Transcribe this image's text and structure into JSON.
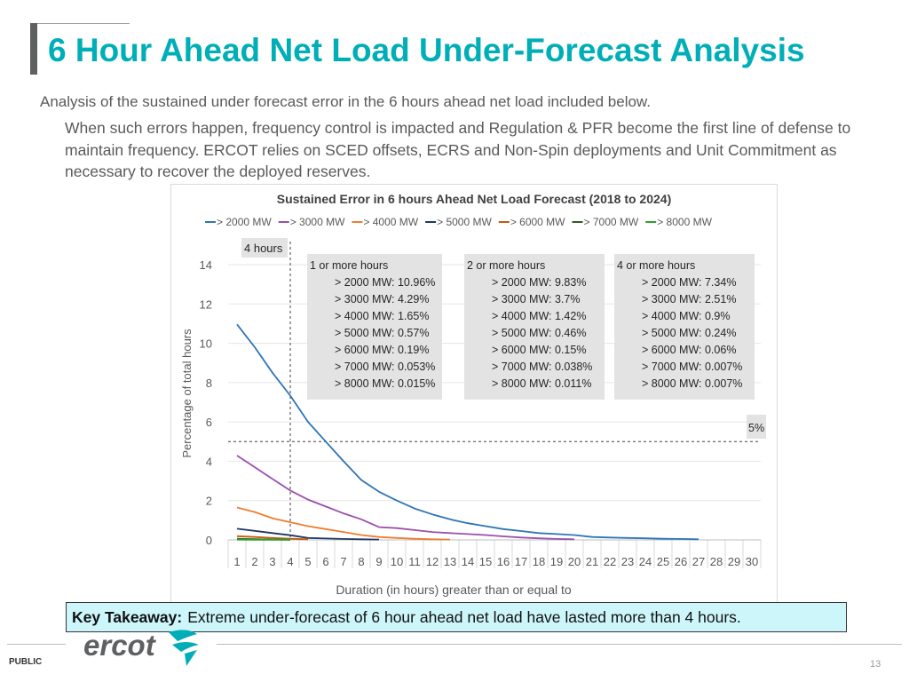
{
  "slide": {
    "title": "6 Hour Ahead Net Load Under-Forecast Analysis",
    "intro": "Analysis of the sustained under forecast error in the 6 hours ahead net load included below.",
    "body": "When such errors happen, frequency control is impacted and Regulation & PFR become the first line of defense to maintain frequency. ERCOT relies on SCED offsets, ECRS and Non-Spin deployments and Unit Commitment as necessary to recover the deployed reserves.",
    "takeaway_label": "Key Takeaway:",
    "takeaway_text": "Extreme under-forecast of 6 hour ahead net load have lasted more than 4 hours.",
    "footer_label": "PUBLIC",
    "page_number": "13",
    "logo_text": "ercot"
  },
  "chart_data": {
    "type": "line",
    "title": "Sustained Error in 6 hours Ahead Net Load Forecast (2018 to 2024)",
    "xlabel": "Duration (in hours) greater than or equal to",
    "ylabel": "Percentage of total hours",
    "xlim": [
      1,
      30
    ],
    "ylim": [
      0,
      14
    ],
    "x_ticks": [
      1,
      2,
      3,
      4,
      5,
      6,
      7,
      8,
      9,
      10,
      11,
      12,
      13,
      14,
      15,
      16,
      17,
      18,
      19,
      20,
      21,
      22,
      23,
      24,
      25,
      26,
      27,
      28,
      29,
      30
    ],
    "y_ticks": [
      0,
      2,
      4,
      6,
      8,
      10,
      12,
      14
    ],
    "series": [
      {
        "name": "> 2000 MW",
        "color": "#2e75b6",
        "x": [
          1,
          2,
          3,
          4,
          5,
          6,
          7,
          8,
          9,
          10,
          11,
          12,
          13,
          14,
          15,
          16,
          17,
          18,
          19,
          20,
          21,
          22,
          23,
          24,
          25,
          26,
          27
        ],
        "values": [
          10.96,
          9.8,
          8.5,
          7.34,
          6.0,
          5.0,
          4.0,
          3.05,
          2.45,
          2.0,
          1.6,
          1.3,
          1.05,
          0.85,
          0.7,
          0.55,
          0.45,
          0.35,
          0.3,
          0.25,
          0.15,
          0.12,
          0.1,
          0.08,
          0.06,
          0.05,
          0.03
        ]
      },
      {
        "name": "> 3000 MW",
        "color": "#9b4fae",
        "x": [
          1,
          2,
          3,
          4,
          5,
          6,
          7,
          8,
          9,
          10,
          11,
          12,
          13,
          14,
          15,
          16,
          17,
          18,
          19,
          20
        ],
        "values": [
          4.29,
          3.7,
          3.1,
          2.51,
          2.05,
          1.7,
          1.35,
          1.05,
          0.65,
          0.6,
          0.5,
          0.4,
          0.35,
          0.3,
          0.25,
          0.18,
          0.12,
          0.08,
          0.05,
          0.03
        ]
      },
      {
        "name": "> 4000 MW",
        "color": "#ed7d31",
        "x": [
          1,
          2,
          3,
          4,
          5,
          6,
          7,
          8,
          9,
          10,
          11,
          12,
          13
        ],
        "values": [
          1.65,
          1.42,
          1.1,
          0.9,
          0.7,
          0.55,
          0.4,
          0.25,
          0.15,
          0.1,
          0.06,
          0.03,
          0.02
        ]
      },
      {
        "name": "> 5000 MW",
        "color": "#1f3864",
        "x": [
          1,
          2,
          3,
          4,
          5,
          6,
          7,
          8,
          9
        ],
        "values": [
          0.57,
          0.46,
          0.35,
          0.24,
          0.1,
          0.07,
          0.05,
          0.03,
          0.02
        ]
      },
      {
        "name": "> 6000 MW",
        "color": "#c55a11",
        "x": [
          1,
          2,
          3,
          4,
          5
        ],
        "values": [
          0.19,
          0.15,
          0.1,
          0.06,
          0.03
        ]
      },
      {
        "name": "> 7000 MW",
        "color": "#375623",
        "x": [
          1,
          2,
          3,
          4
        ],
        "values": [
          0.053,
          0.038,
          0.02,
          0.007
        ]
      },
      {
        "name": "> 8000 MW",
        "color": "#2ca02c",
        "x": [
          1,
          2,
          3,
          4
        ],
        "values": [
          0.015,
          0.011,
          0.009,
          0.007
        ]
      }
    ],
    "annotations": {
      "vline": {
        "x": 4,
        "label": "4 hours"
      },
      "hline": {
        "y": 5,
        "label": "5%"
      },
      "boxes": [
        {
          "heading": "1 or more hours",
          "lines": [
            "> 2000 MW: 10.96%",
            "> 3000 MW: 4.29%",
            "> 4000 MW: 1.65%",
            "> 5000 MW: 0.57%",
            "> 6000 MW: 0.19%",
            "> 7000 MW: 0.053%",
            "> 8000 MW: 0.015%"
          ]
        },
        {
          "heading": "2 or more hours",
          "lines": [
            "> 2000 MW: 9.83%",
            "> 3000 MW: 3.7%",
            "> 4000 MW: 1.42%",
            "> 5000 MW: 0.46%",
            "> 6000 MW: 0.15%",
            "> 7000 MW: 0.038%",
            "> 8000 MW: 0.011%"
          ]
        },
        {
          "heading": "4 or more hours",
          "lines": [
            "> 2000 MW: 7.34%",
            "> 3000 MW: 2.51%",
            "> 4000 MW: 0.9%",
            "> 5000 MW: 0.24%",
            "> 6000 MW: 0.06%",
            "> 7000 MW: 0.007%",
            "> 8000 MW: 0.007%"
          ]
        }
      ]
    },
    "grid": true,
    "legend_position": "top"
  }
}
